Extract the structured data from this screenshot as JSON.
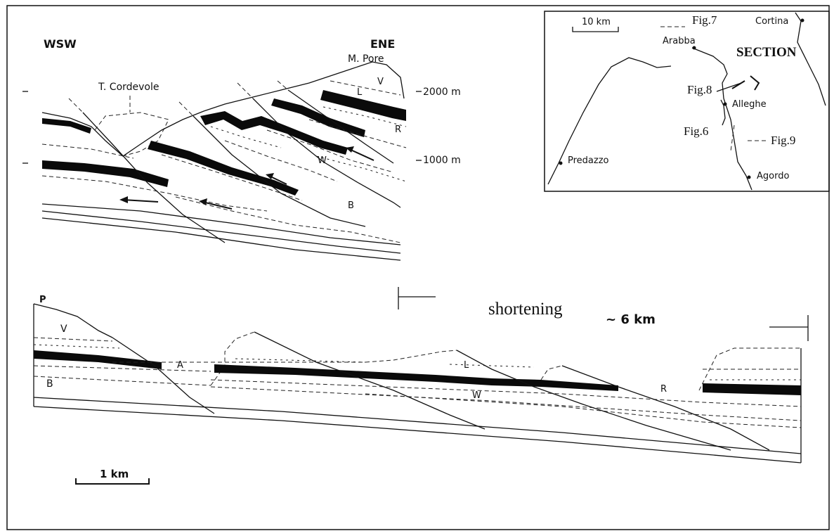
{
  "colors": {
    "ink": "#111111",
    "paper": "#ffffff"
  },
  "upper_section": {
    "direction_left": "WSW",
    "direction_right": "ENE",
    "peak": "M. Pore",
    "valley": "T. Cordevole",
    "elev_top": "2000 m",
    "elev_bottom": "1000 m",
    "unit_L": "L",
    "unit_V": "V",
    "unit_R": "R",
    "unit_W": "W",
    "unit_B": "B"
  },
  "inset_map": {
    "scale": "10 km",
    "towns": [
      "Cortina",
      "Arabba",
      "Alleghe",
      "Predazzo",
      "Agordo"
    ],
    "section_label": "SECTION",
    "fig_labels": [
      "Fig.7",
      "Fig.8",
      "Fig.6",
      "Fig.9"
    ]
  },
  "lower_section": {
    "shortening_label": "shortening",
    "shortening_value": "~ 6 km",
    "unit_P": "P",
    "unit_V": "V",
    "unit_A": "A",
    "unit_B": "B",
    "unit_L": "L",
    "unit_W": "W",
    "unit_R": "R",
    "scale": "1 km"
  }
}
